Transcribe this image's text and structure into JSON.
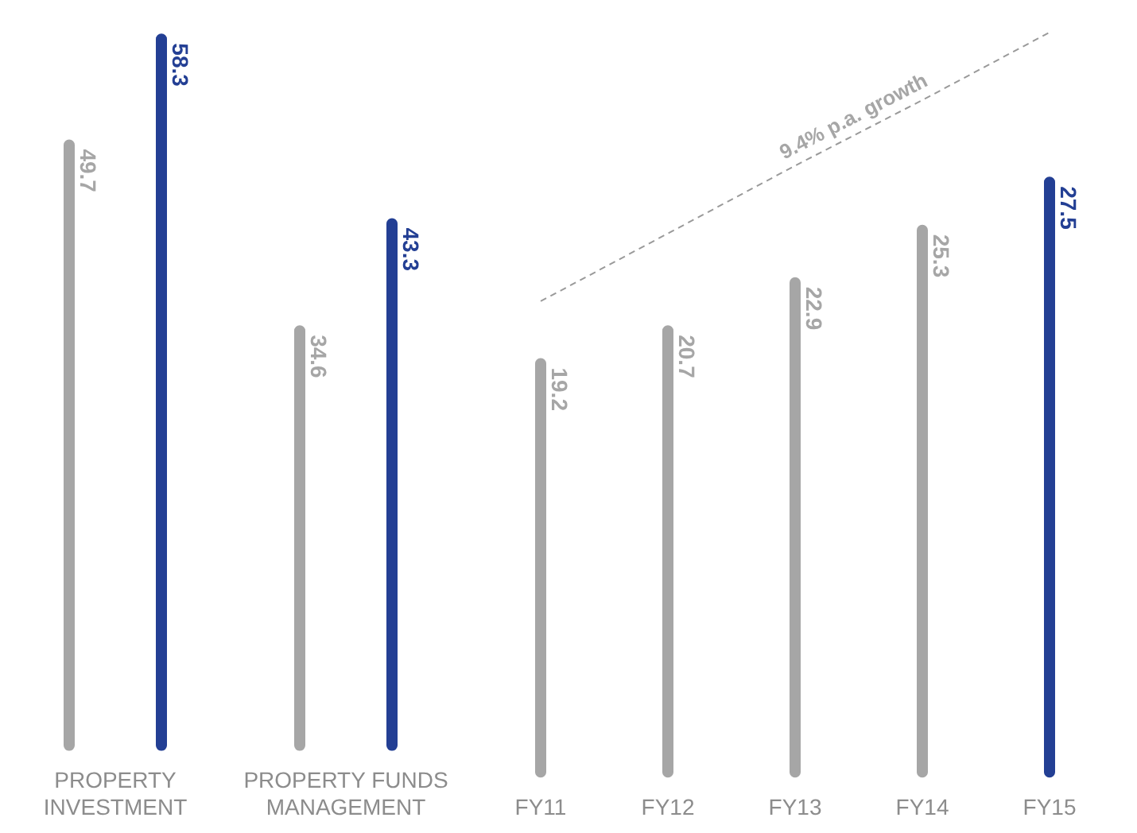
{
  "chart_data": [
    {
      "type": "bar",
      "categories": [
        "PROPERTY INVESTMENT",
        "PROPERTY FUNDS MANAGEMENT"
      ],
      "data_labels": true,
      "grid": false,
      "tick_labels": "x",
      "series": [
        {
          "color": "#a6a6a6",
          "values": [
            49.7,
            34.6
          ]
        },
        {
          "color": "#233f94",
          "values": [
            58.3,
            43.3
          ]
        }
      ]
    },
    {
      "type": "bar",
      "categories": [
        "FY11",
        "FY12",
        "FY13",
        "FY14",
        "FY15"
      ],
      "data_labels": true,
      "grid": false,
      "tick_labels": "x",
      "annotations": [
        "9.4% p.a. growth"
      ],
      "series": [
        {
          "colors": [
            "#a6a6a6",
            "#a6a6a6",
            "#a6a6a6",
            "#a6a6a6",
            "#233f94"
          ],
          "values": [
            19.2,
            20.7,
            22.9,
            25.3,
            27.5
          ]
        },
        {
          "type": "line",
          "color": "#9a9a9a",
          "line_style": "dashed",
          "marker": "none",
          "values": [
            21.8,
            24.9,
            28.0,
            31.0,
            34.1
          ],
          "value_labels": [
            null,
            null,
            null,
            null,
            null
          ]
        }
      ]
    }
  ]
}
